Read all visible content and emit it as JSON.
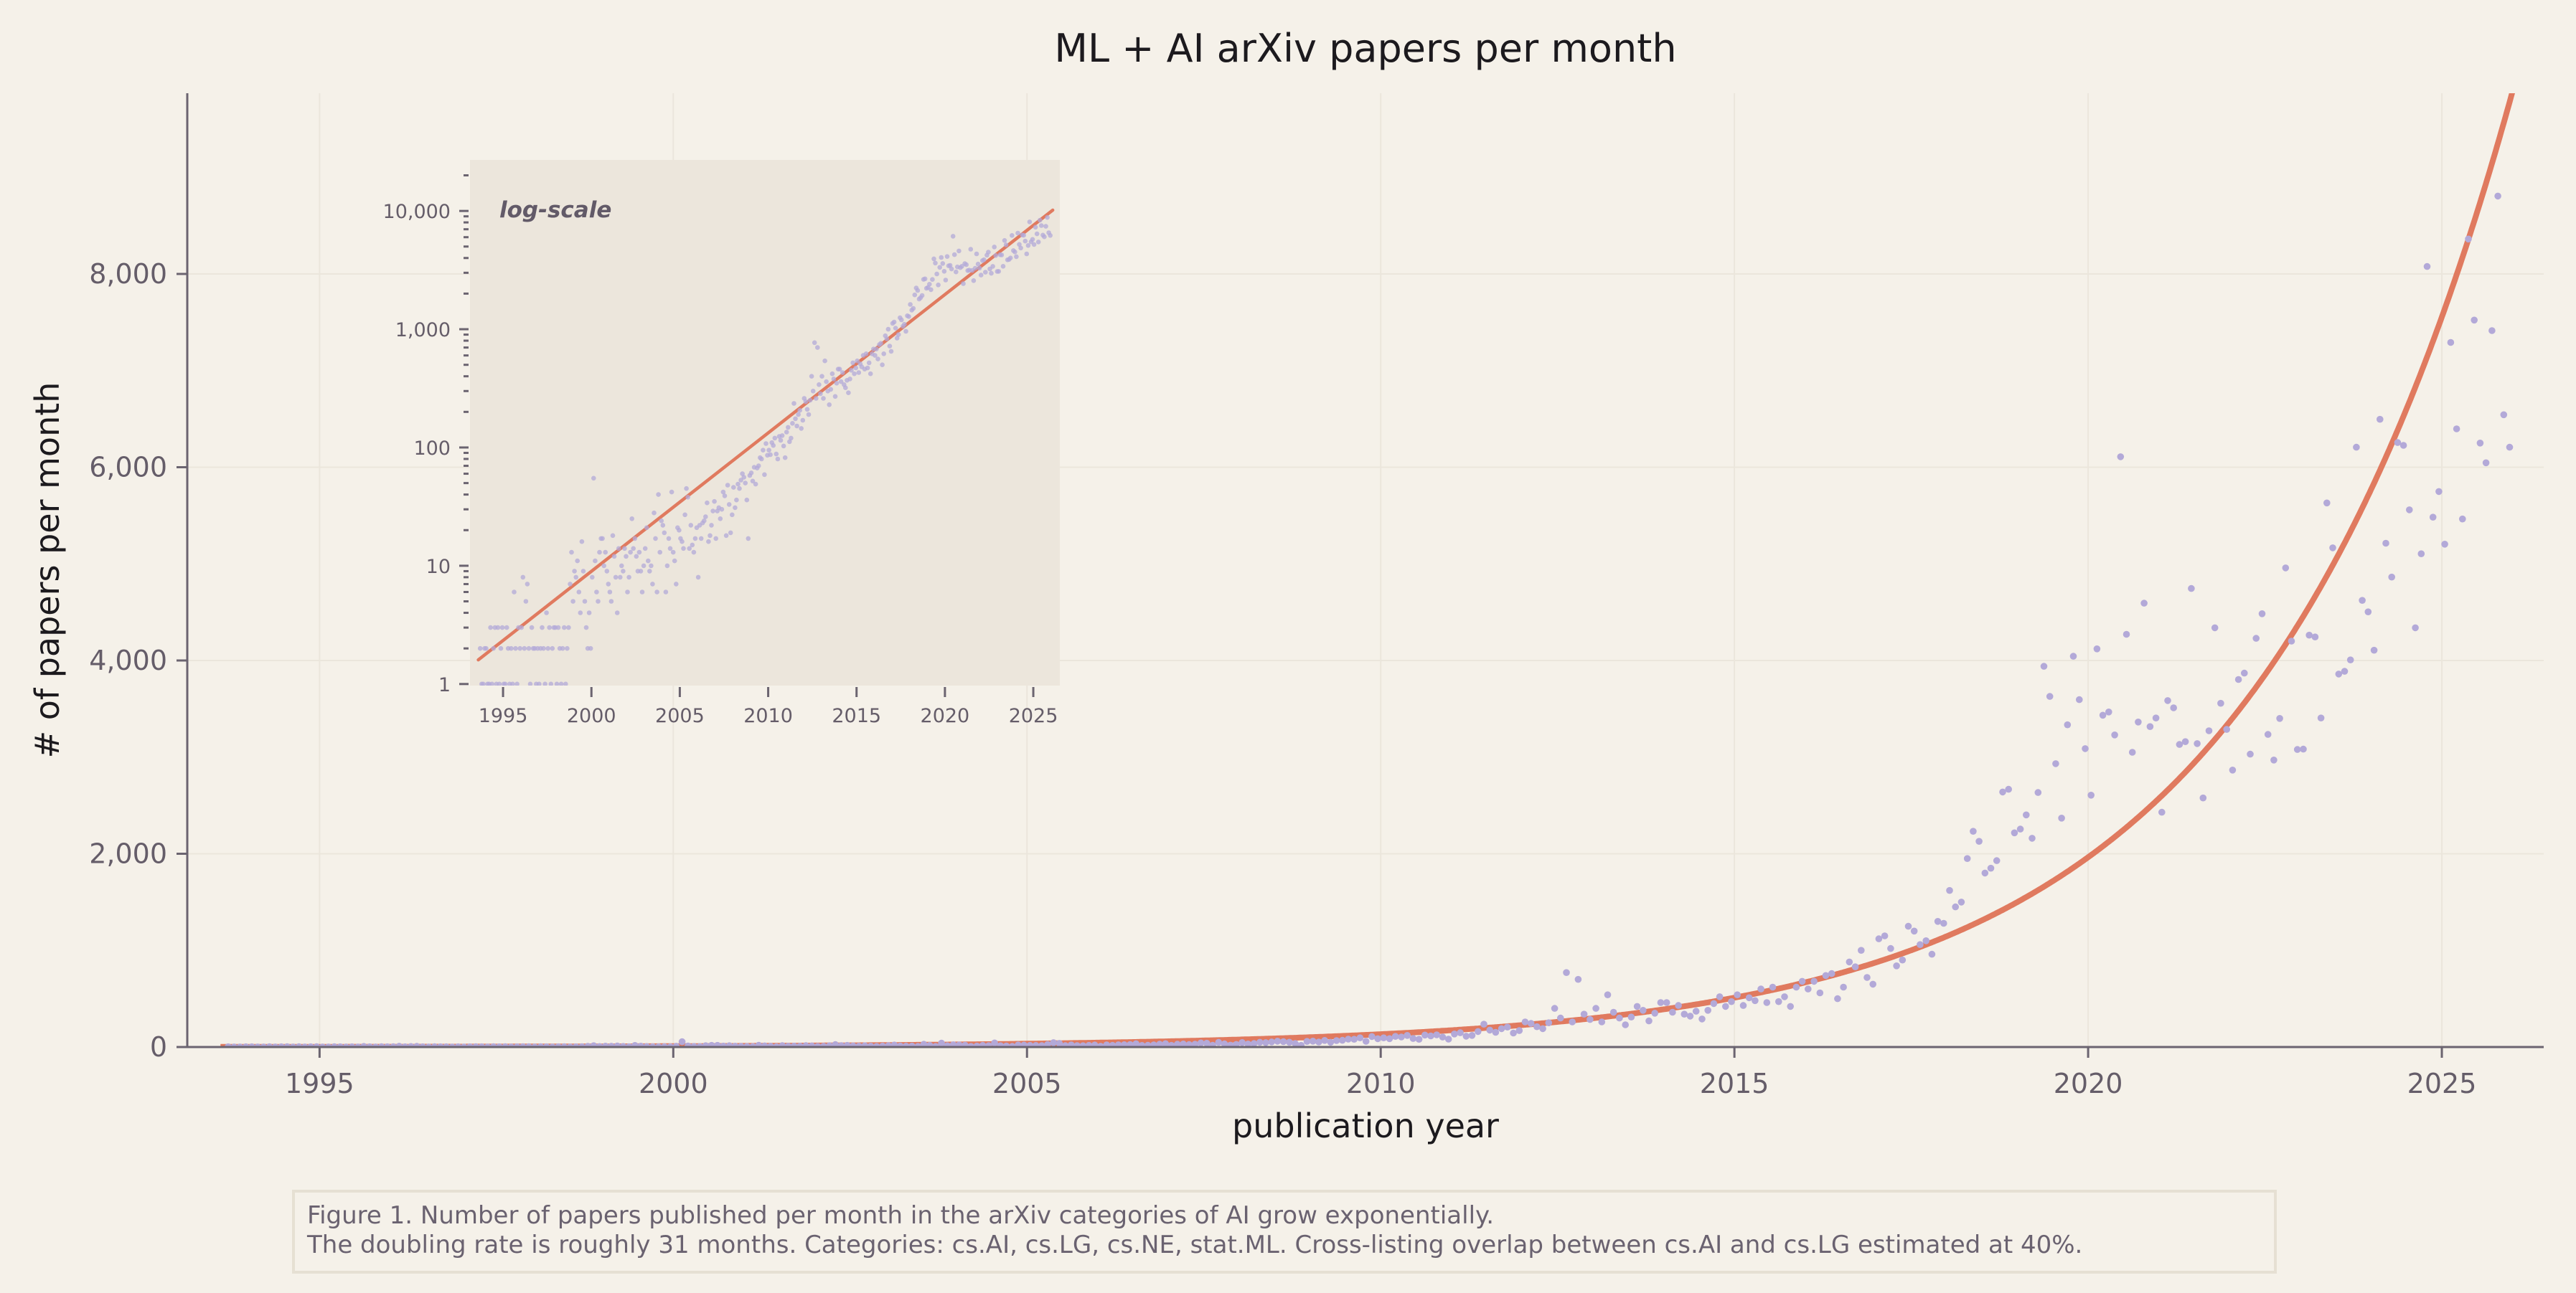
{
  "chart_data": {
    "type": "scatter",
    "title": "ML + AI arXiv papers per month",
    "xlabel": "publication year",
    "ylabel": "# of papers per month",
    "xlim": [
      1993.13,
      2026.44
    ],
    "ylim": [
      0,
      9870
    ],
    "x_ticks": [
      1995,
      2000,
      2005,
      2010,
      2015,
      2020,
      2025
    ],
    "y_ticks": [
      0,
      2000,
      4000,
      6000,
      8000
    ],
    "y_tick_labels": [
      "0",
      "2,000",
      "4,000",
      "6,000",
      "8,000"
    ],
    "grid": true,
    "colors": {
      "points": "#b3a9d8",
      "fit_line": "#e07a5f",
      "axis": "#6b6470",
      "background": "#f5f1e9",
      "inset_background": "#ece6dc"
    },
    "fit": {
      "type": "exponential",
      "x": [
        1993.6,
        2026.1
      ],
      "y": [
        1.6,
        10160
      ],
      "doubling_months": 31
    },
    "monthly": {
      "1993": [
        null,
        null,
        null,
        null,
        null,
        null,
        null,
        null,
        2,
        1,
        1,
        2
      ],
      "1994": [
        2,
        1,
        1,
        3,
        1,
        2,
        3,
        1,
        3,
        1,
        2,
        3
      ],
      "1995": [
        1,
        1,
        3,
        2,
        1,
        2,
        1,
        6,
        2,
        1,
        3,
        2
      ],
      "1996": [
        3,
        8,
        2,
        5,
        7,
        2,
        1,
        3,
        2,
        2,
        1,
        2
      ],
      "1997": [
        1,
        2,
        3,
        2,
        1,
        4,
        2,
        3,
        1,
        2,
        3,
        3
      ],
      "1998": [
        1,
        3,
        2,
        1,
        2,
        3,
        1,
        2,
        3,
        7,
        13,
        5
      ],
      "1999": [
        9,
        8,
        11,
        6,
        4,
        16,
        9,
        5,
        3,
        2,
        4,
        2
      ],
      "2000": [
        8,
        55,
        11,
        6,
        5,
        13,
        17,
        17,
        10,
        13,
        9,
        7
      ],
      "2001": [
        6,
        5,
        18,
        12,
        8,
        4,
        14,
        8,
        10,
        9,
        14,
        12
      ],
      "2002": [
        6,
        8,
        13,
        25,
        14,
        17,
        12,
        9,
        13,
        9,
        6,
        10
      ],
      "2003": [
        14,
        21,
        11,
        9,
        10,
        7,
        28,
        17,
        6,
        40,
        13,
        24
      ],
      "2004": [
        22,
        19,
        6,
        10,
        17,
        14,
        42,
        13,
        11,
        7,
        21,
        20
      ],
      "2005": [
        17,
        16,
        14,
        27,
        45,
        38,
        14,
        22,
        15,
        13,
        17,
        21
      ],
      "2006": [
        8,
        22,
        17,
        23,
        24,
        26,
        34,
        16,
        18,
        22,
        29,
        35
      ],
      "2007": [
        17,
        29,
        31,
        25,
        30,
        42,
        39,
        18,
        48,
        33,
        19,
        27
      ],
      "2008": [
        46,
        31,
        36,
        49,
        45,
        53,
        60,
        56,
        50,
        36,
        17,
        58
      ],
      "2009": [
        61,
        52,
        68,
        49,
        67,
        70,
        82,
        80,
        95,
        59,
        108,
        86
      ],
      "2010": [
        95,
        87,
        110,
        104,
        120,
        88,
        80,
        124,
        115,
        126,
        103,
        82
      ],
      "2011": [
        135,
        148,
        112,
        120,
        160,
        236,
        175,
        152,
        190,
        206,
        145,
        170
      ],
      "2012": [
        260,
        244,
        210,
        190,
        251,
        400,
        300,
        770,
        260,
        700,
        340,
        285
      ],
      "2013": [
        400,
        260,
        540,
        360,
        300,
        230,
        310,
        420,
        380,
        270,
        350,
        460
      ],
      "2014": [
        460,
        360,
        430,
        340,
        320,
        370,
        290,
        380,
        450,
        520,
        420,
        470
      ],
      "2015": [
        540,
        430,
        510,
        480,
        600,
        460,
        620,
        470,
        520,
        420,
        620,
        680
      ],
      "2016": [
        600,
        680,
        560,
        740,
        760,
        500,
        620,
        880,
        830,
        1000,
        720,
        650
      ],
      "2017": [
        1120,
        1150,
        1020,
        840,
        900,
        1250,
        1200,
        1060,
        1100,
        960,
        1300,
        1280
      ],
      "2018": [
        1620,
        1450,
        1500,
        1950,
        2232,
        2128,
        1800,
        1850,
        1929,
        2639,
        2667,
        2217
      ],
      "2019": [
        2255,
        2402,
        2160,
        2634,
        3940,
        3628,
        2932,
        2369,
        3334,
        4044,
        3595,
        3088
      ],
      "2020": [
        2606,
        4120,
        3434,
        3467,
        3230,
        6108,
        4271,
        3050,
        3363,
        4593,
        3316,
        3405
      ],
      "2021": [
        2430,
        3585,
        3510,
        3131,
        3160,
        4745,
        3140,
        2577,
        3273,
        4338,
        3557,
        3287
      ],
      "2022": [
        2866,
        3803,
        3869,
        3031,
        4229,
        4484,
        3235,
        2970,
        3400,
        4958,
        4200,
        3079
      ],
      "2023": [
        3083,
        4262,
        4243,
        3405,
        5630,
        5166,
        3860,
        3888,
        4006,
        6207,
        4622,
        4503
      ],
      "2024": [
        4106,
        6496,
        5213,
        4863,
        6255,
        6226,
        5559,
        4338,
        5104,
        8077,
        5483,
        5748
      ],
      "2025": [
        5204,
        7291,
        6397,
        5464,
        8361,
        7523,
        6250,
        6046,
        7414,
        8806,
        6543,
        6207
      ]
    },
    "inset": {
      "label": "log-scale",
      "yscale": "log",
      "xlim": [
        1993.13,
        2026.5
      ],
      "ylim": [
        0.97,
        27000
      ],
      "x_ticks": [
        1995,
        2000,
        2005,
        2010,
        2015,
        2020,
        2025
      ],
      "y_ticks": [
        1,
        10,
        100,
        1000,
        10000
      ],
      "y_tick_labels": [
        "1",
        "10",
        "100",
        "1,000",
        "10,000"
      ]
    }
  },
  "caption": {
    "line1": "Figure 1. Number of papers published per month in the arXiv categories of AI grow exponentially.",
    "line2": "The doubling rate is roughly 31 months. Categories: cs.AI, cs.LG, cs.NE, stat.ML. Cross-listing overlap between cs.AI and cs.LG estimated at 40%."
  }
}
